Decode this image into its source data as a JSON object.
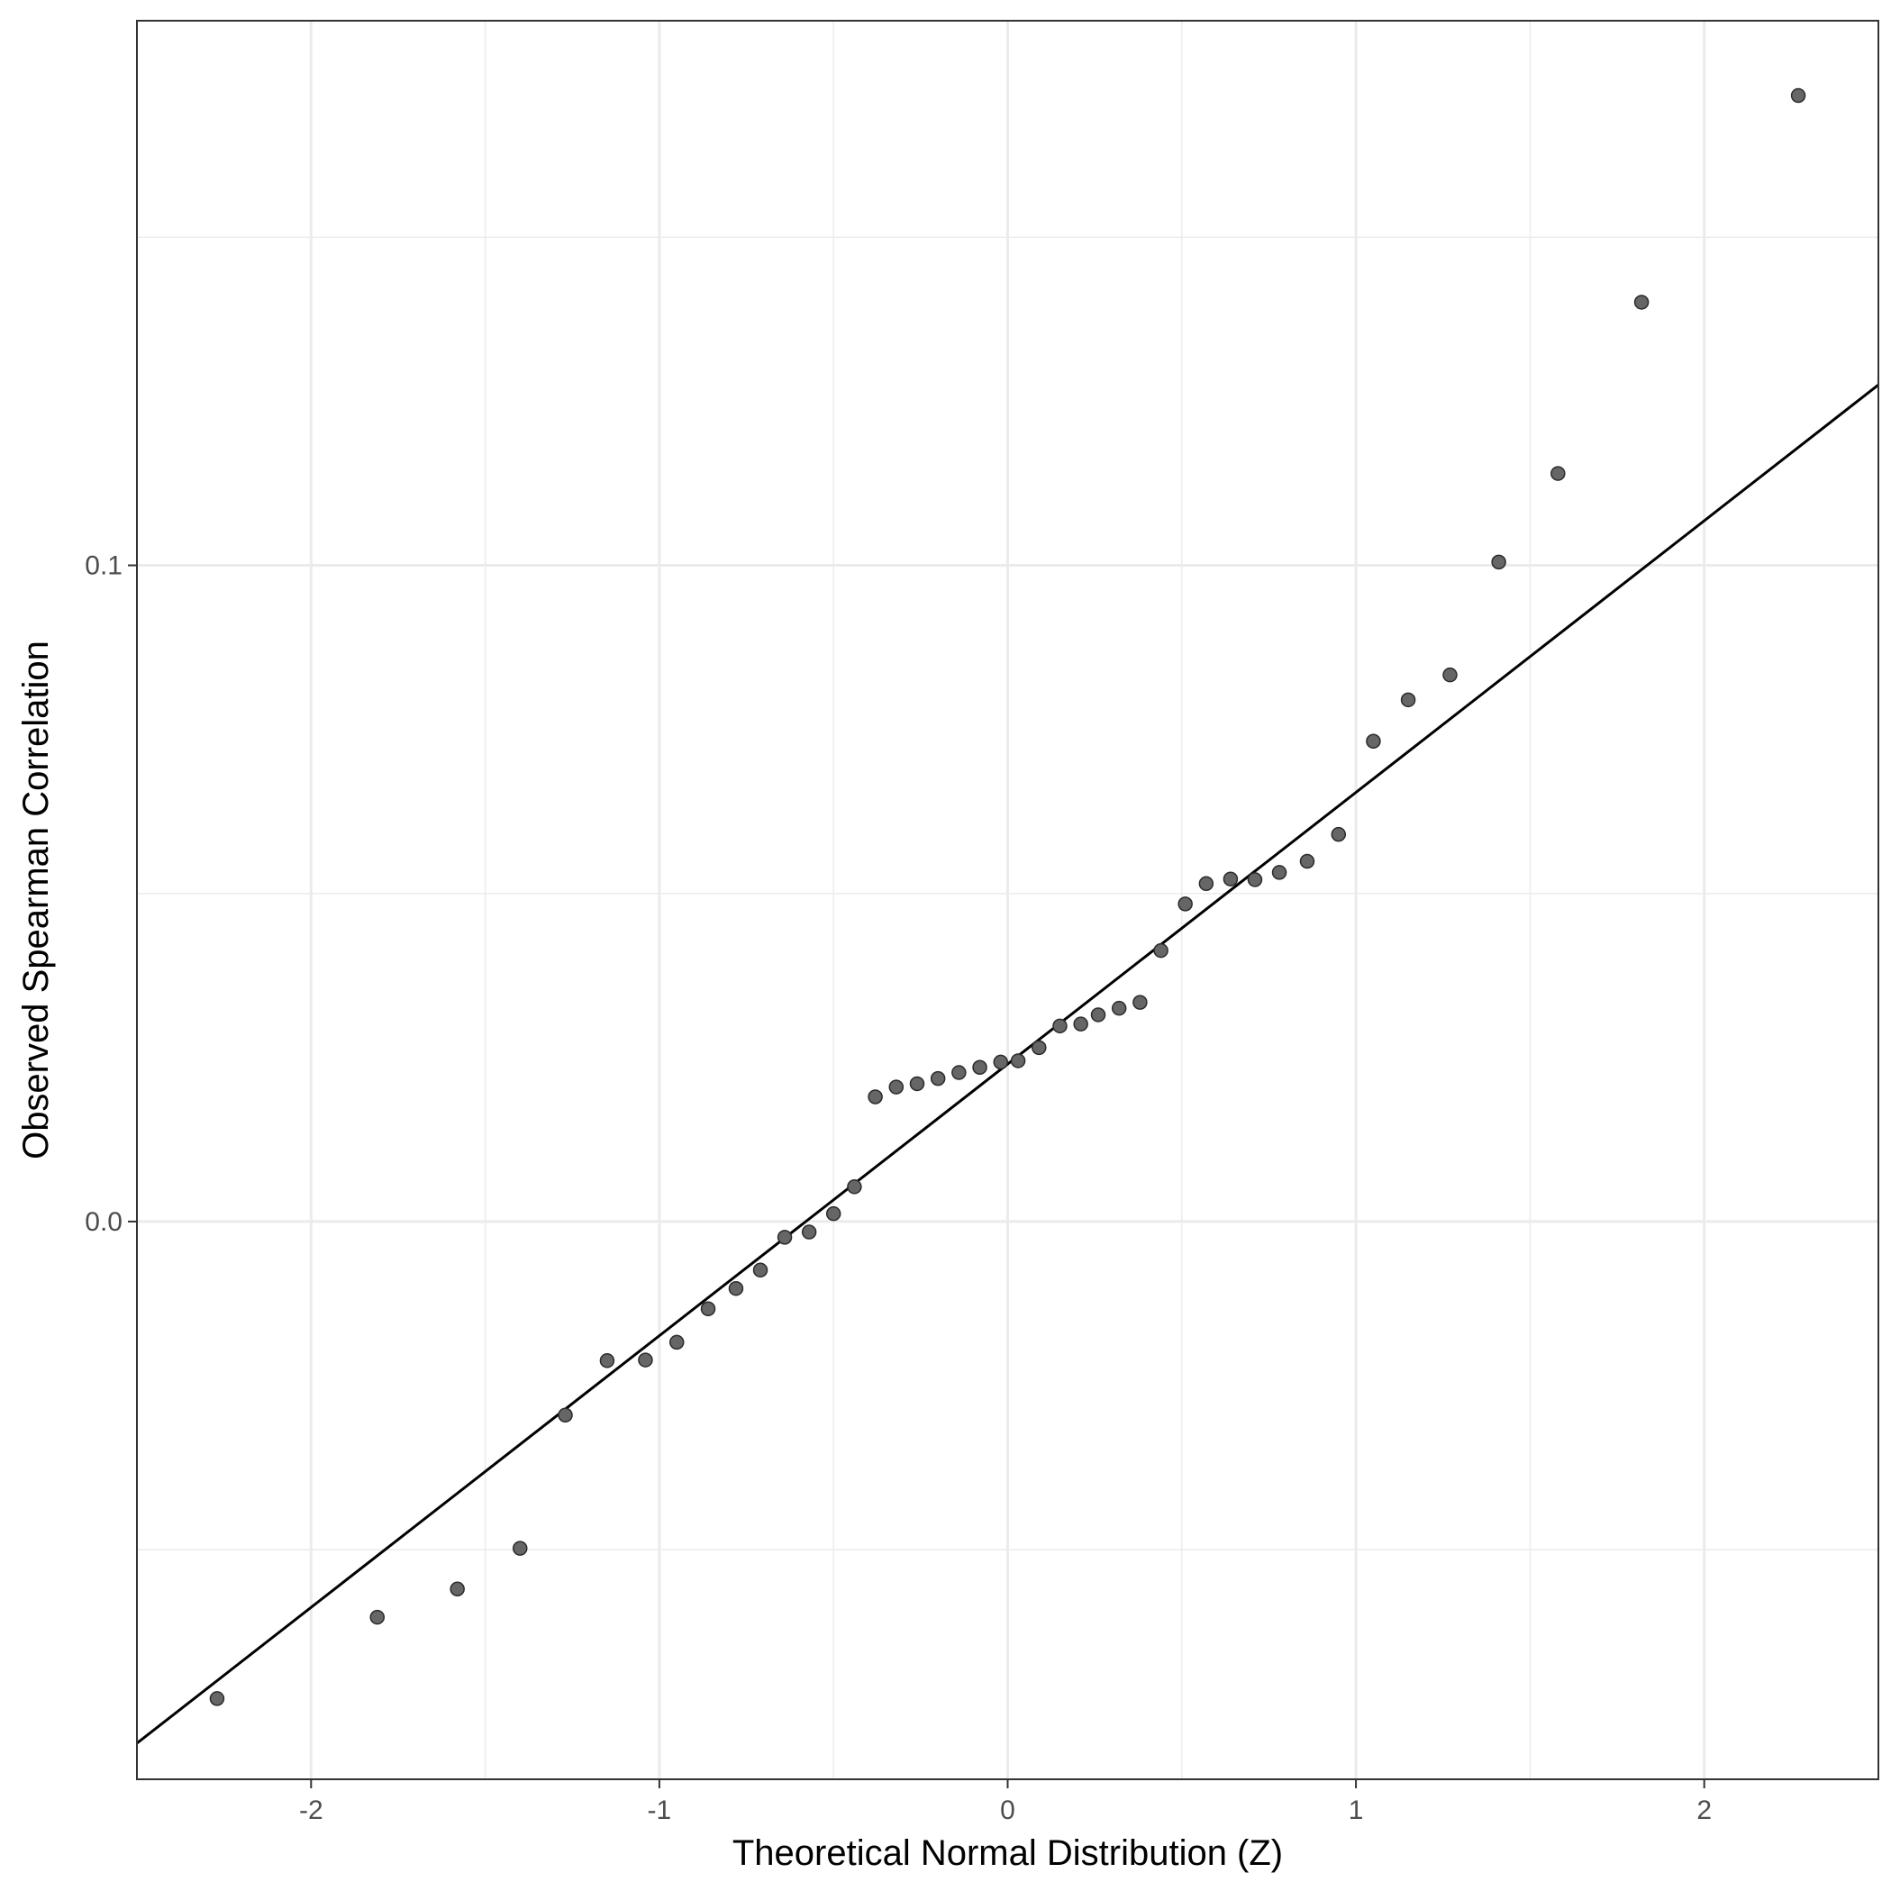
{
  "chart_data": {
    "type": "scatter",
    "xlabel": "Theoretical Normal Distribution (Z)",
    "ylabel": "Observed Spearman Correlation",
    "xlim": [
      -2.5,
      2.5
    ],
    "ylim": [
      -0.085,
      0.183
    ],
    "x_ticks": [
      -2,
      -1,
      0,
      1,
      2
    ],
    "x_tick_labels": [
      "-2",
      "-1",
      "0",
      "1",
      "2"
    ],
    "y_ticks": [
      0.0,
      0.1
    ],
    "y_tick_labels": [
      "0.0",
      "0.1"
    ],
    "x_minor_ticks": [
      -1.5,
      -0.5,
      0.5,
      1.5
    ],
    "y_minor_ticks": [
      -0.05,
      0.05,
      0.15
    ],
    "grid": true,
    "colors": {
      "points": "#666666",
      "point_outline": "#2b2b2b",
      "line": "#000000",
      "grid": "#ebebeb",
      "panel_border": "#333333"
    },
    "points": [
      {
        "x": -2.27,
        "y": -0.0727
      },
      {
        "x": -1.81,
        "y": -0.0603
      },
      {
        "x": -1.58,
        "y": -0.056
      },
      {
        "x": -1.4,
        "y": -0.0498
      },
      {
        "x": -1.27,
        "y": -0.0295
      },
      {
        "x": -1.15,
        "y": -0.0212
      },
      {
        "x": -1.04,
        "y": -0.0211
      },
      {
        "x": -0.95,
        "y": -0.0184
      },
      {
        "x": -0.86,
        "y": -0.0133
      },
      {
        "x": -0.78,
        "y": -0.0102
      },
      {
        "x": -0.71,
        "y": -0.0074
      },
      {
        "x": -0.64,
        "y": -0.0024
      },
      {
        "x": -0.57,
        "y": -0.0016
      },
      {
        "x": -0.5,
        "y": 0.0012
      },
      {
        "x": -0.44,
        "y": 0.0053
      },
      {
        "x": -0.38,
        "y": 0.019
      },
      {
        "x": -0.32,
        "y": 0.0205
      },
      {
        "x": -0.26,
        "y": 0.021
      },
      {
        "x": -0.2,
        "y": 0.0218
      },
      {
        "x": -0.14,
        "y": 0.0227
      },
      {
        "x": -0.08,
        "y": 0.0235
      },
      {
        "x": -0.02,
        "y": 0.0243
      },
      {
        "x": 0.03,
        "y": 0.0245
      },
      {
        "x": 0.09,
        "y": 0.0265
      },
      {
        "x": 0.15,
        "y": 0.0298
      },
      {
        "x": 0.21,
        "y": 0.0301
      },
      {
        "x": 0.26,
        "y": 0.0315
      },
      {
        "x": 0.32,
        "y": 0.0325
      },
      {
        "x": 0.38,
        "y": 0.0334
      },
      {
        "x": 0.44,
        "y": 0.0413
      },
      {
        "x": 0.51,
        "y": 0.0484
      },
      {
        "x": 0.57,
        "y": 0.0515
      },
      {
        "x": 0.64,
        "y": 0.0522
      },
      {
        "x": 0.71,
        "y": 0.0521
      },
      {
        "x": 0.78,
        "y": 0.0532
      },
      {
        "x": 0.86,
        "y": 0.0549
      },
      {
        "x": 0.95,
        "y": 0.059
      },
      {
        "x": 1.05,
        "y": 0.0732
      },
      {
        "x": 1.15,
        "y": 0.0795
      },
      {
        "x": 1.27,
        "y": 0.0833
      },
      {
        "x": 1.41,
        "y": 0.1005
      },
      {
        "x": 1.58,
        "y": 0.114
      },
      {
        "x": 1.82,
        "y": 0.1401
      },
      {
        "x": 2.27,
        "y": 0.1716
      }
    ],
    "reference_line": {
      "x1": -2.5,
      "y1": -0.0795,
      "x2": 2.5,
      "y2": 0.1275
    }
  }
}
